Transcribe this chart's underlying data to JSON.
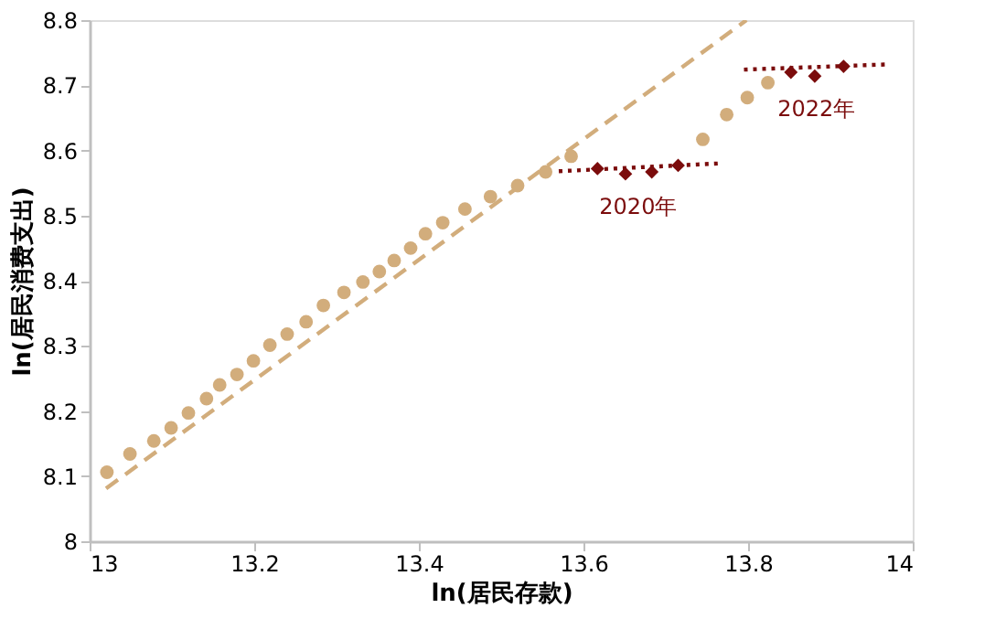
{
  "chart_data": {
    "type": "scatter",
    "xlabel": "ln(居民存款)",
    "ylabel": "ln(居民消费支出)",
    "xlim": [
      13,
      14
    ],
    "xticks": [
      13,
      13.2,
      13.4,
      13.6,
      13.8,
      14
    ],
    "ylim": [
      8,
      8.8
    ],
    "yticks": [
      8,
      8.1,
      8.2,
      8.3,
      8.4,
      8.5,
      8.6,
      8.7,
      8.8
    ],
    "grid": false,
    "series": [
      {
        "type": "line",
        "line_style": "dashed",
        "marker": "none",
        "color": "#d2ad7c",
        "x": [
          13.02,
          13.798
        ],
        "values": [
          8.081,
          8.8
        ]
      },
      {
        "marker": "circle",
        "color": "#d2ad7c",
        "x": [
          13.021,
          13.049,
          13.078,
          13.099,
          13.12,
          13.142,
          13.158,
          13.179,
          13.199,
          13.219,
          13.24,
          13.263,
          13.284,
          13.309,
          13.332,
          13.352,
          13.37,
          13.39,
          13.408,
          13.429,
          13.456,
          13.487,
          13.52,
          13.554,
          13.585,
          13.745,
          13.774,
          13.799,
          13.824
        ],
        "values": [
          8.106,
          8.134,
          8.154,
          8.174,
          8.197,
          8.219,
          8.24,
          8.256,
          8.277,
          8.301,
          8.318,
          8.337,
          8.362,
          8.382,
          8.398,
          8.414,
          8.431,
          8.45,
          8.472,
          8.489,
          8.51,
          8.529,
          8.546,
          8.567,
          8.591,
          8.617,
          8.655,
          8.681,
          8.704
        ]
      },
      {
        "type": "line",
        "line_style": "dotted",
        "marker": "none",
        "color": "#7b0c0c",
        "x": [
          13.57,
          13.765
        ],
        "values": [
          8.568,
          8.58
        ]
      },
      {
        "type": "line",
        "line_style": "dotted",
        "marker": "none",
        "color": "#7b0c0c",
        "x": [
          13.795,
          13.969
        ],
        "values": [
          8.724,
          8.732
        ]
      },
      {
        "marker": "diamond",
        "color": "#7b0c0c",
        "x": [
          13.617,
          13.651,
          13.683,
          13.715
        ],
        "values": [
          8.572,
          8.564,
          8.567,
          8.577
        ]
      },
      {
        "marker": "diamond",
        "color": "#7b0c0c",
        "x": [
          13.852,
          13.881,
          13.916
        ],
        "values": [
          8.72,
          8.714,
          8.729
        ]
      }
    ],
    "annotations": [
      "2020年",
      "2022年"
    ]
  }
}
